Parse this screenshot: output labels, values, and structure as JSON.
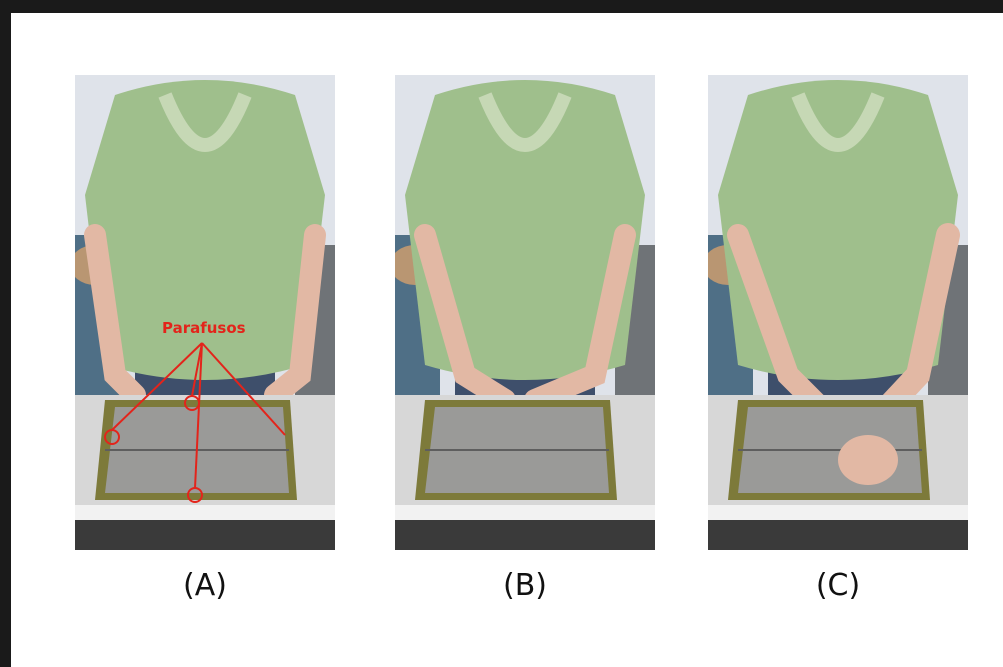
{
  "panels": [
    {
      "caption": "(A)"
    },
    {
      "caption": "(B)"
    },
    {
      "caption": "(C)"
    }
  ],
  "annotation": {
    "label": "Parafusos",
    "color": "#e3241b"
  },
  "colors": {
    "frame": "#1a1a1a",
    "shirt": "#9fbf8c",
    "board": "#7d7a3a",
    "wall": "#dfe3ea"
  }
}
